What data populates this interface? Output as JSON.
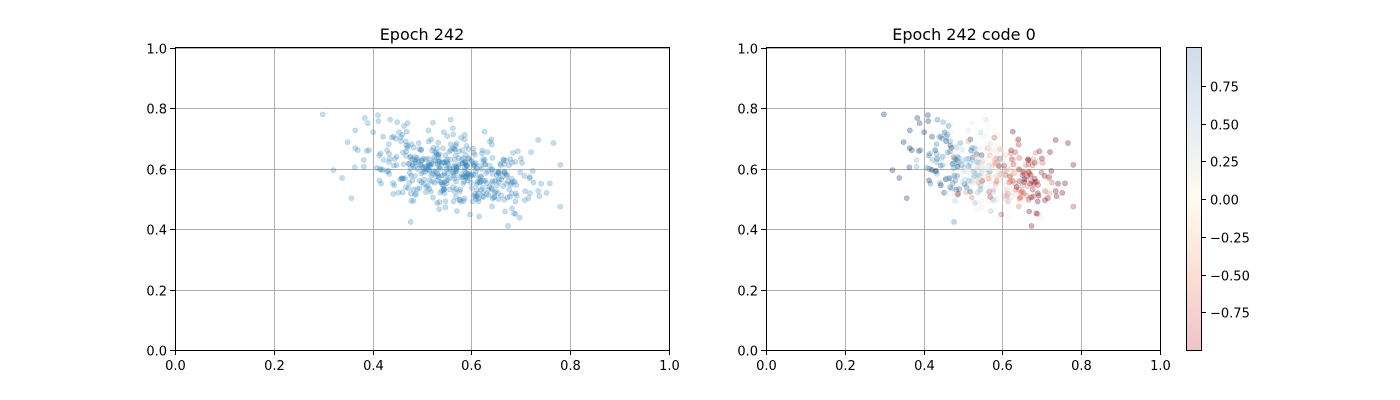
{
  "chart_data": [
    {
      "type": "scatter",
      "title": "Epoch 242",
      "xlim": [
        0.0,
        1.0
      ],
      "ylim": [
        0.0,
        1.0
      ],
      "xticks": [
        "0.0",
        "0.2",
        "0.4",
        "0.6",
        "0.8",
        "1.0"
      ],
      "yticks": [
        "0.0",
        "0.2",
        "0.4",
        "0.6",
        "0.8",
        "1.0"
      ],
      "grid": true,
      "marker_color": "#1f77b4",
      "alpha": 0.25,
      "points_description": "Cloud of roughly 450 semi-transparent blue points centered near (0.56, 0.59), spanning x 0.25–0.78 and y 0.35–0.78."
    },
    {
      "type": "scatter",
      "title": "Epoch 242 code 0",
      "xlim": [
        0.0,
        1.0
      ],
      "ylim": [
        0.0,
        1.0
      ],
      "xticks": [
        "0.0",
        "0.2",
        "0.4",
        "0.6",
        "0.8",
        "1.0"
      ],
      "yticks": [
        "0.0",
        "0.2",
        "0.4",
        "0.6",
        "0.8",
        "1.0"
      ],
      "grid": true,
      "colormap": "RdBu",
      "color_trend": "value decreases with x: blue-ish (positive) on the left, red (negative) on the right",
      "colorbar": {
        "ticks": [
          "0.75",
          "0.50",
          "0.25",
          "0.00",
          "−0.25",
          "−0.50",
          "−0.75"
        ],
        "tick_values": [
          0.75,
          0.5,
          0.25,
          0.0,
          -0.25,
          -0.5,
          -0.75
        ],
        "range": [
          -1.0,
          1.0
        ],
        "top_color": "#d1dbe9",
        "mid_color": "#fffbef",
        "bottom_color": "#eec4c9"
      }
    }
  ]
}
